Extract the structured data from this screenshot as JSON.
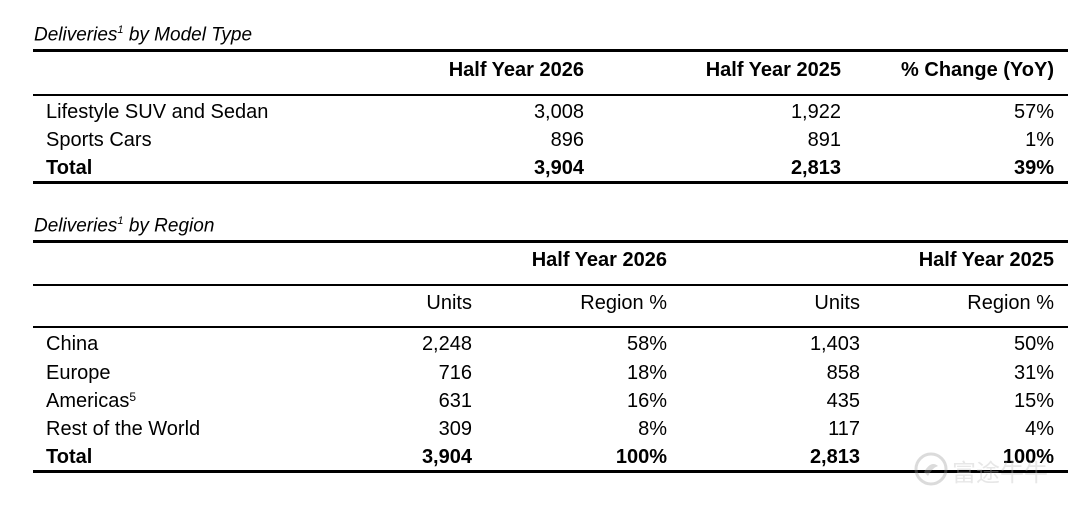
{
  "table1": {
    "title": "Deliveries",
    "title_sup": "1",
    "title_suffix": " by Model Type",
    "headers": [
      "Half Year 2026",
      "Half Year 2025",
      "% Change (YoY)"
    ],
    "rows": [
      {
        "label": "Lifestyle SUV and Sedan",
        "h2026": "3,008",
        "h2025": "1,922",
        "change": "57%"
      },
      {
        "label": "Sports Cars",
        "h2026": "896",
        "h2025": "891",
        "change": "1%"
      }
    ],
    "total": {
      "label": "Total",
      "h2026": "3,904",
      "h2025": "2,813",
      "change": "39%"
    }
  },
  "table2": {
    "title": "Deliveries",
    "title_sup": "1",
    "title_suffix": " by Region",
    "group_headers": [
      "Half Year 2026",
      "Half Year 2025"
    ],
    "sub_headers": [
      "Units",
      "Region %",
      "Units",
      "Region %"
    ],
    "rows": [
      {
        "label": "China",
        "sup": "",
        "u2026": "2,248",
        "p2026": "58%",
        "u2025": "1,403",
        "p2025": "50%"
      },
      {
        "label": "Europe",
        "sup": "",
        "u2026": "716",
        "p2026": "18%",
        "u2025": "858",
        "p2025": "31%"
      },
      {
        "label": "Americas",
        "sup": "5",
        "u2026": "631",
        "p2026": "16%",
        "u2025": "435",
        "p2025": "15%"
      },
      {
        "label": "Rest of the World",
        "sup": "",
        "u2026": "309",
        "p2026": "8%",
        "u2025": "117",
        "p2025": "4%"
      }
    ],
    "total": {
      "label": "Total",
      "u2026": "3,904",
      "p2026": "100%",
      "u2025": "2,813",
      "p2025": "100%"
    }
  },
  "watermark": {
    "text": "富途牛牛",
    "icon": "futu-logo-icon"
  }
}
